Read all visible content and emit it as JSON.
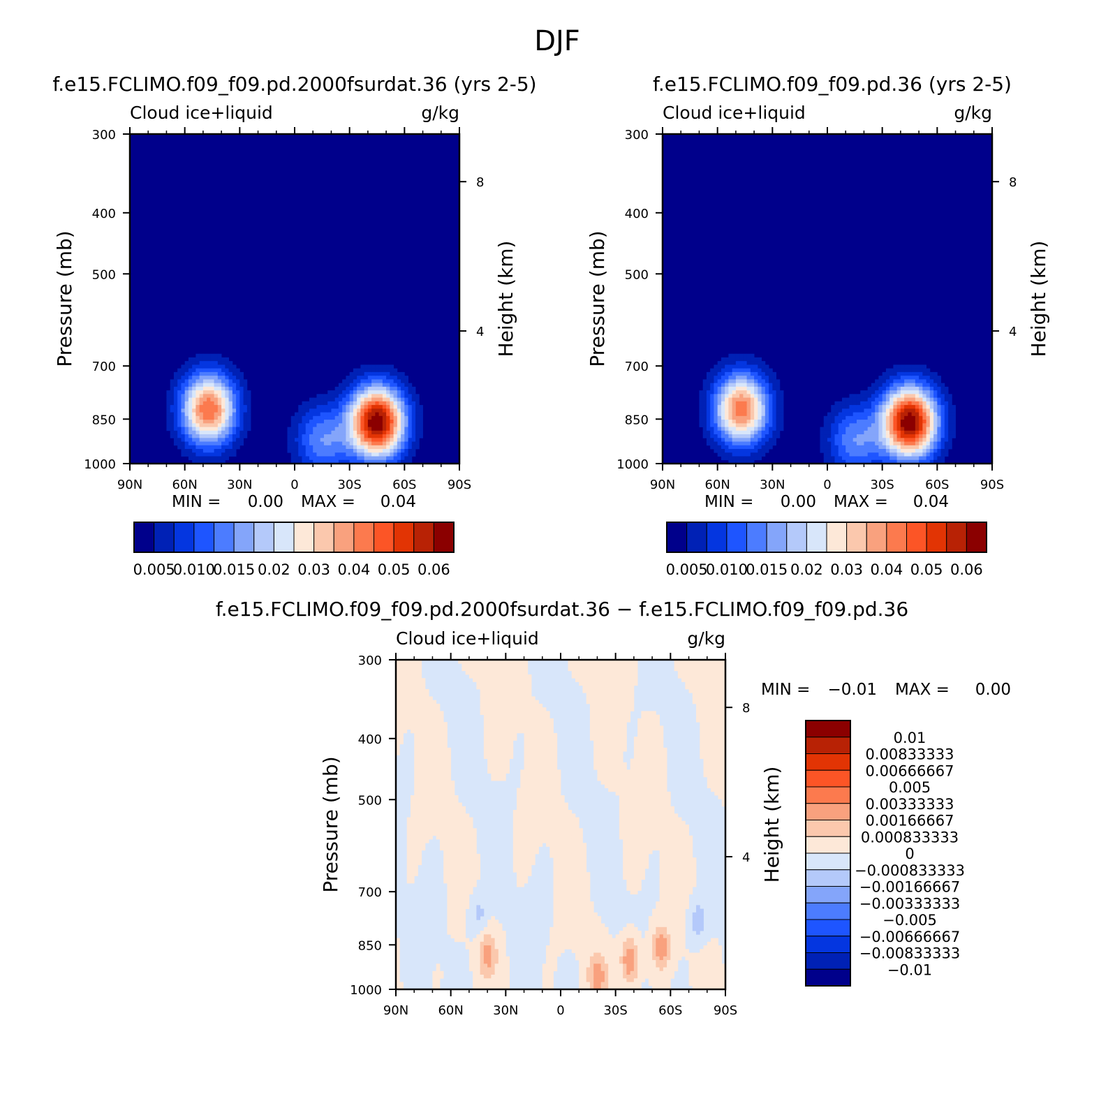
{
  "figure": {
    "title": "DJF"
  },
  "chart_data": [
    {
      "type": "heatmap",
      "panel": "top-left",
      "title": "f.e15.FCLIMO.f09_f09.pd.2000fsurdat.36 (yrs 2-5)",
      "variable": "Cloud ice+liquid",
      "units": "g/kg",
      "ylabel": "Pressure (mb)",
      "ylabel_right": "Height (km)",
      "x_ticks": [
        "90N",
        "60N",
        "30N",
        "0",
        "30S",
        "60S",
        "90S"
      ],
      "y_ticks": [
        "300",
        "400",
        "500",
        "700",
        "850",
        "1000"
      ],
      "y_ticks_right": [
        "8",
        "4"
      ],
      "ylim": [
        1000,
        300
      ],
      "stats": {
        "min_label": "MIN =",
        "min_value": "0.00",
        "max_label": "MAX =",
        "max_value": "0.04"
      },
      "colorbar": {
        "orientation": "horizontal",
        "tick_labels": [
          "0.005",
          "0.010",
          "0.015",
          "0.02",
          "0.03",
          "0.04",
          "0.05",
          "0.06"
        ],
        "colors": [
          "#00008b",
          "#0021b5",
          "#0436e0",
          "#1e55ff",
          "#4c7cff",
          "#84a5fa",
          "#b4c9fa",
          "#d8e6fa",
          "#fde8d8",
          "#fbc8ad",
          "#f9a17e",
          "#fc7a4e",
          "#fc5526",
          "#e23404",
          "#b82205",
          "#8b0000"
        ]
      },
      "blobs": [
        {
          "lat": 47,
          "p": 820,
          "peak": 0.03
        },
        {
          "lat": -45,
          "p": 860,
          "peak": 0.04
        },
        {
          "lat": -15,
          "p": 920,
          "peak": 0.012
        }
      ]
    },
    {
      "type": "heatmap",
      "panel": "top-right",
      "title": "f.e15.FCLIMO.f09_f09.pd.36 (yrs 2-5)",
      "variable": "Cloud ice+liquid",
      "units": "g/kg",
      "ylabel": "Pressure (mb)",
      "ylabel_right": "Height (km)",
      "x_ticks": [
        "90N",
        "60N",
        "30N",
        "0",
        "30S",
        "60S",
        "90S"
      ],
      "y_ticks": [
        "300",
        "400",
        "500",
        "700",
        "850",
        "1000"
      ],
      "y_ticks_right": [
        "8",
        "4"
      ],
      "ylim": [
        1000,
        300
      ],
      "stats": {
        "min_label": "MIN =",
        "min_value": "0.00",
        "max_label": "MAX =",
        "max_value": "0.04"
      },
      "colorbar": {
        "orientation": "horizontal",
        "tick_labels": [
          "0.005",
          "0.010",
          "0.015",
          "0.02",
          "0.03",
          "0.04",
          "0.05",
          "0.06"
        ],
        "colors": [
          "#00008b",
          "#0021b5",
          "#0436e0",
          "#1e55ff",
          "#4c7cff",
          "#84a5fa",
          "#b4c9fa",
          "#d8e6fa",
          "#fde8d8",
          "#fbc8ad",
          "#f9a17e",
          "#fc7a4e",
          "#fc5526",
          "#e23404",
          "#b82205",
          "#8b0000"
        ]
      },
      "blobs": [
        {
          "lat": 47,
          "p": 820,
          "peak": 0.029
        },
        {
          "lat": -45,
          "p": 860,
          "peak": 0.04
        },
        {
          "lat": -15,
          "p": 920,
          "peak": 0.012
        }
      ]
    },
    {
      "type": "heatmap",
      "panel": "bottom",
      "title": "f.e15.FCLIMO.f09_f09.pd.2000fsurdat.36 − f.e15.FCLIMO.f09_f09.pd.36",
      "variable": "Cloud ice+liquid",
      "units": "g/kg",
      "ylabel": "Pressure (mb)",
      "ylabel_right": "Height (km)",
      "x_ticks": [
        "90N",
        "60N",
        "30N",
        "0",
        "30S",
        "60S",
        "90S"
      ],
      "y_ticks": [
        "300",
        "400",
        "500",
        "700",
        "850",
        "1000"
      ],
      "y_ticks_right": [
        "8",
        "4"
      ],
      "ylim": [
        1000,
        300
      ],
      "stats": {
        "min_label": "MIN =",
        "min_value": "−0.01",
        "max_label": "MAX =",
        "max_value": "0.00"
      },
      "colorbar": {
        "orientation": "vertical",
        "tick_labels": [
          "0.01",
          "0.00833333",
          "0.00666667",
          "0.005",
          "0.00333333",
          "0.00166667",
          "0.000833333",
          "0",
          "−0.000833333",
          "−0.00166667",
          "−0.00333333",
          "−0.005",
          "−0.00666667",
          "−0.00833333",
          "−0.01"
        ],
        "colors": [
          "#8b0000",
          "#b82205",
          "#e23404",
          "#fc5526",
          "#fc7a4e",
          "#f9a17e",
          "#fbc8ad",
          "#fde8d8",
          "#d8e6fa",
          "#b4c9fa",
          "#84a5fa",
          "#4c7cff",
          "#1e55ff",
          "#0436e0",
          "#0021b5",
          "#00008b"
        ]
      }
    }
  ]
}
